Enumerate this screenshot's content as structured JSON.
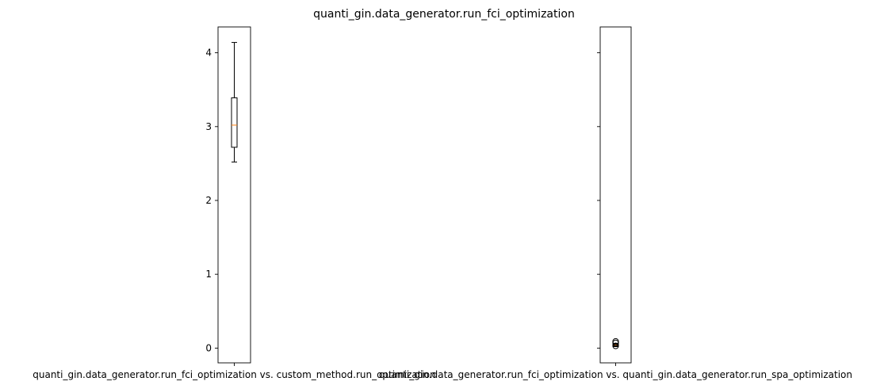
{
  "chart_data": {
    "type": "box",
    "title": "quanti_gin.data_generator.run_fci_optimization",
    "ylim": [
      -0.2,
      4.35
    ],
    "yticks": [
      0,
      1,
      2,
      3,
      4
    ],
    "grid": false,
    "shared_y": true,
    "panels": [
      {
        "category": "quanti_gin.data_generator.run_fci_optimization vs. custom_method.run_optimization",
        "box": {
          "whislo": 2.52,
          "q1": 2.72,
          "med": 3.02,
          "q3": 3.39,
          "whishi": 4.14,
          "fliers": []
        },
        "show_ytick_labels": true
      },
      {
        "category": "quanti_gin.data_generator.run_fci_optimization vs. quanti_gin.data_generator.run_spa_optimization",
        "box": {
          "whislo": 0.02,
          "q1": 0.03,
          "med": 0.04,
          "q3": 0.05,
          "whishi": 0.06,
          "fliers": [
            0.03,
            0.07,
            0.09
          ]
        },
        "show_ytick_labels": false
      }
    ],
    "colors": {
      "box": "#000000",
      "median": "#ff7f0e",
      "flier": "#000000"
    }
  }
}
